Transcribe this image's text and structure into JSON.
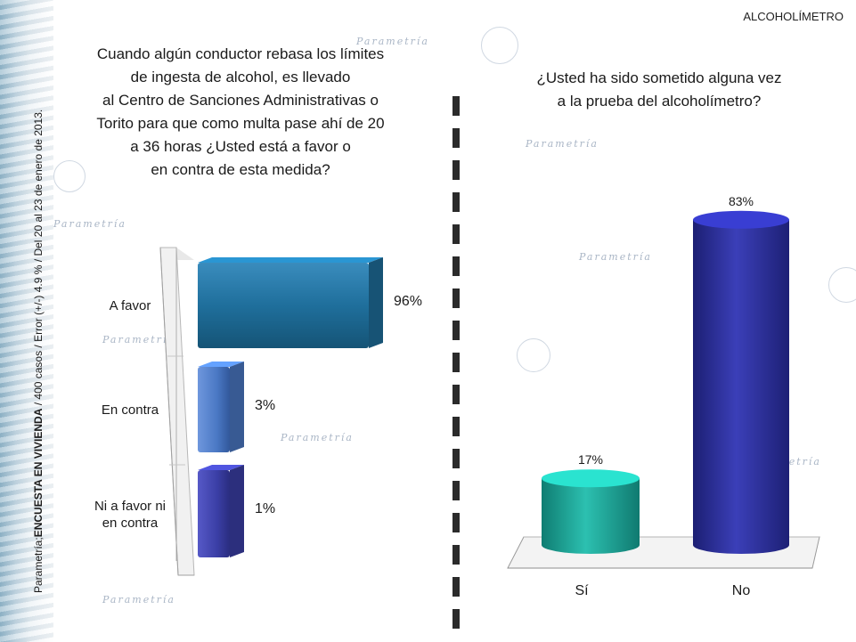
{
  "header": {
    "section_title": "ALCOHOLÍMETRO"
  },
  "survey_note": {
    "prefix": "Parametría;",
    "bold": "ENCUESTA EN VIVIENDA",
    "suffix": " / 400 casos / Error (+/-) 4.9 % / Del 20 al 23 de enero de 2013."
  },
  "watermark_text": "Parametría",
  "left_panel": {
    "question": "Cuando algún conductor rebasa los límites\nde ingesta de alcohol, es llevado\nal Centro de Sanciones Administrativas o\nTorito para  que como multa pase ahí de 20\na 36 horas ¿Usted está a favor o\nen contra de esta medida?"
  },
  "right_panel": {
    "question": "¿Usted ha sido sometido alguna vez\na la prueba del alcoholímetro?"
  },
  "chart_data": [
    {
      "type": "bar",
      "orientation": "horizontal",
      "categories": [
        "A favor",
        "En contra",
        "Ni a favor ni en contra"
      ],
      "category_lines": [
        [
          "A favor"
        ],
        [
          "En contra"
        ],
        [
          "Ni a favor ni",
          "en contra"
        ]
      ],
      "values": [
        96,
        3,
        1
      ],
      "value_labels": [
        "96%",
        "3%",
        "1%"
      ],
      "unit": "%",
      "colors": [
        "#1f6f9c",
        "#4a78c4",
        "#3b3fa6"
      ],
      "xlim": [
        0,
        100
      ],
      "legend": "none",
      "grid": false
    },
    {
      "type": "bar",
      "orientation": "vertical",
      "categories": [
        "Sí",
        "No"
      ],
      "values": [
        17,
        83
      ],
      "value_labels": [
        "17%",
        "83%"
      ],
      "unit": "%",
      "colors": [
        "#1fa89a",
        "#2a2e9c"
      ],
      "ylim": [
        0,
        100
      ],
      "legend": "none",
      "grid": false
    }
  ]
}
